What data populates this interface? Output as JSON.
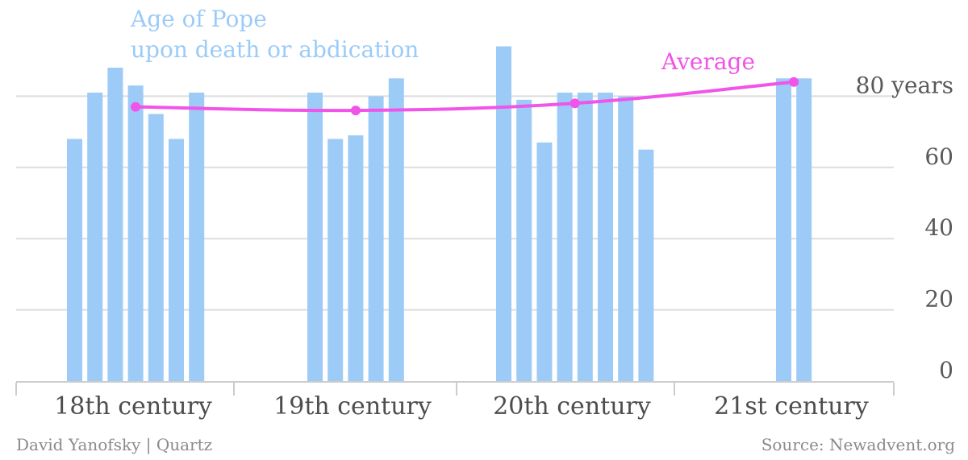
{
  "colors": {
    "bar": "#9ccbf7",
    "average": "#f154e8",
    "grid": "#dddddd",
    "axis": "#cccccc",
    "tick_text": "#595959",
    "footer_text": "#8a8a8a"
  },
  "chart_data": {
    "type": "bar",
    "title": "",
    "xlabel": "",
    "ylabel": "",
    "ylim": [
      0,
      90
    ],
    "grid": true,
    "y_ticks": [
      {
        "value": 0,
        "label": "0"
      },
      {
        "value": 20,
        "label": "20"
      },
      {
        "value": 40,
        "label": "40"
      },
      {
        "value": 60,
        "label": "60"
      },
      {
        "value": 80,
        "label": "80 years"
      }
    ],
    "categories": [
      "18th century",
      "19th century",
      "20th century",
      "21st century"
    ],
    "series": [
      {
        "name": "Age of Pope\nupon death or abdication",
        "name_lines": [
          "Age of Pope",
          "upon death or abdication"
        ],
        "values": [
          [
            68,
            81,
            88,
            83,
            75,
            68,
            81
          ],
          [
            81,
            68,
            69,
            80,
            85
          ],
          [
            94,
            79,
            67,
            81,
            81,
            81,
            80,
            65
          ],
          [
            85,
            85
          ]
        ]
      },
      {
        "name": "Average",
        "type": "line",
        "values": [
          77,
          76,
          78,
          84
        ]
      }
    ]
  },
  "footer": {
    "credit": "David Yanofsky | Quartz",
    "source": "Source: Newadvent.org"
  }
}
